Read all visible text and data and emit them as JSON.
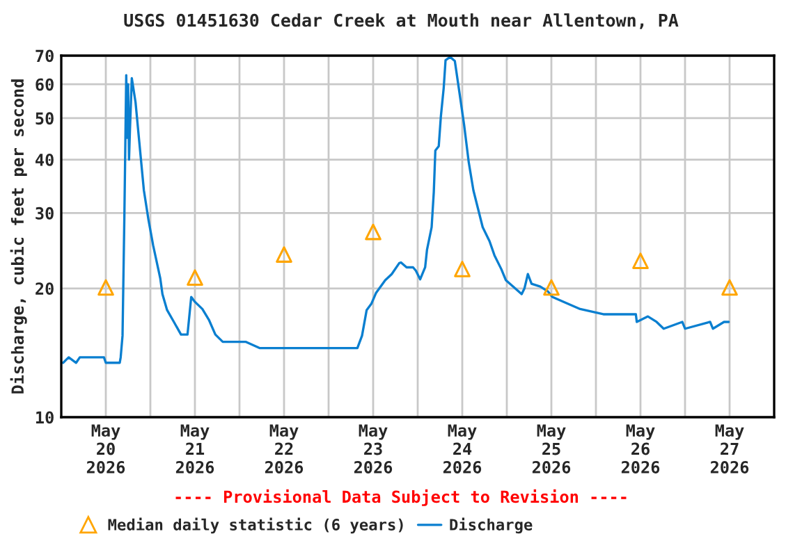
{
  "chart_data": {
    "type": "line",
    "title": "USGS 01451630 Cedar Creek at Mouth near Allentown, PA",
    "ylabel": "Discharge, cubic feet per second",
    "annotations": [
      "---- Provisional Data Subject to Revision ----"
    ],
    "log": "y",
    "grid": true,
    "legend": "bottom",
    "xlim": [
      "2026-05-20T00:00",
      "2026-05-28T00:00"
    ],
    "xticks": [
      {
        "value": "2026-05-20T12:00",
        "label": "May\n20\n2026"
      },
      {
        "value": "2026-05-21T12:00",
        "label": "May\n21\n2026"
      },
      {
        "value": "2026-05-22T12:00",
        "label": "May\n22\n2026"
      },
      {
        "value": "2026-05-23T12:00",
        "label": "May\n23\n2026"
      },
      {
        "value": "2026-05-24T12:00",
        "label": "May\n24\n2026"
      },
      {
        "value": "2026-05-25T12:00",
        "label": "May\n25\n2026"
      },
      {
        "value": "2026-05-26T12:00",
        "label": "May\n26\n2026"
      },
      {
        "value": "2026-05-27T12:00",
        "label": "May\n27\n2026"
      },
      {
        "value": "2026-05-21T00:00",
        "label": null
      },
      {
        "value": "2026-05-22T00:00",
        "label": null
      },
      {
        "value": "2026-05-23T00:00",
        "label": null
      },
      {
        "value": "2026-05-24T00:00",
        "label": null
      },
      {
        "value": "2026-05-25T00:00",
        "label": null
      },
      {
        "value": "2026-05-26T00:00",
        "label": null
      },
      {
        "value": "2026-05-27T00:00",
        "label": null
      }
    ],
    "ylim": [
      10,
      70
    ],
    "yticks": [
      10,
      20,
      30,
      40,
      50,
      60,
      70
    ],
    "series": [
      {
        "name": "Median daily statistic (6 years)",
        "type": "scatter",
        "marker": "triangle",
        "color": "#ffa500",
        "x": [
          "2026-05-20T12:00",
          "2026-05-21T12:00",
          "2026-05-22T12:00",
          "2026-05-23T12:00",
          "2026-05-24T12:00",
          "2026-05-25T12:00",
          "2026-05-26T12:00",
          "2026-05-27T12:00"
        ],
        "values": [
          20.1,
          21.2,
          24.0,
          27.1,
          22.2,
          20.1,
          23.2,
          20.1
        ]
      },
      {
        "name": "Discharge",
        "marker": "none",
        "color": "#0a7fd0",
        "x": [
          "2026-05-20T00:30",
          "2026-05-20T02:00",
          "2026-05-20T04:00",
          "2026-05-20T05:00",
          "2026-05-20T11:30",
          "2026-05-20T12:00",
          "2026-05-20T15:45",
          "2026-05-20T16:00",
          "2026-05-20T16:30",
          "2026-05-20T17:00",
          "2026-05-20T17:30",
          "2026-05-20T17:45",
          "2026-05-20T18:00",
          "2026-05-20T18:15",
          "2026-05-20T18:30",
          "2026-05-20T19:00",
          "2026-05-20T20:00",
          "2026-05-20T21:00",
          "2026-05-20T22:15",
          "2026-05-20T23:30",
          "2026-05-21T00:45",
          "2026-05-21T02:40",
          "2026-05-21T03:15",
          "2026-05-21T04:30",
          "2026-05-21T06:20",
          "2026-05-21T08:15",
          "2026-05-21T10:00",
          "2026-05-21T11:00",
          "2026-05-21T12:00",
          "2026-05-21T14:00",
          "2026-05-21T15:45",
          "2026-05-21T17:30",
          "2026-05-21T19:30",
          "2026-05-22T01:45",
          "2026-05-22T05:30",
          "2026-05-23T07:45",
          "2026-05-23T09:00",
          "2026-05-23T10:15",
          "2026-05-23T11:30",
          "2026-05-23T12:45",
          "2026-05-23T15:15",
          "2026-05-23T17:00",
          "2026-05-23T19:00",
          "2026-05-23T19:30",
          "2026-05-23T21:00",
          "2026-05-23T22:45",
          "2026-05-23T23:30",
          "2026-05-24T00:40",
          "2026-05-24T02:00",
          "2026-05-24T02:30",
          "2026-05-24T03:45",
          "2026-05-24T04:20",
          "2026-05-24T04:45",
          "2026-05-24T05:40",
          "2026-05-24T06:15",
          "2026-05-24T07:00",
          "2026-05-24T07:30",
          "2026-05-24T08:45",
          "2026-05-24T10:00",
          "2026-05-24T11:15",
          "2026-05-24T12:30",
          "2026-05-24T13:45",
          "2026-05-24T15:00",
          "2026-05-24T16:15",
          "2026-05-24T17:30",
          "2026-05-24T19:20",
          "2026-05-24T20:40",
          "2026-05-24T22:30",
          "2026-05-24T23:45",
          "2026-05-25T02:15",
          "2026-05-25T04:00",
          "2026-05-25T04:45",
          "2026-05-25T05:40",
          "2026-05-25T06:40",
          "2026-05-25T09:00",
          "2026-05-25T11:00",
          "2026-05-25T12:15",
          "2026-05-25T15:20",
          "2026-05-25T19:45",
          "2026-05-26T02:00",
          "2026-05-26T10:45",
          "2026-05-26T11:00",
          "2026-05-26T14:00",
          "2026-05-26T16:20",
          "2026-05-26T18:15",
          "2026-05-26T23:15",
          "2026-05-27T00:00",
          "2026-05-27T06:45",
          "2026-05-27T07:30",
          "2026-05-27T10:30",
          "2026-05-27T11:45"
        ],
        "values": [
          13.4,
          13.8,
          13.4,
          13.8,
          13.8,
          13.4,
          13.4,
          13.8,
          15.5,
          29.6,
          63.0,
          45,
          60,
          40,
          47,
          62,
          54.5,
          44.1,
          33.9,
          28.9,
          25.2,
          21.1,
          19.4,
          17.8,
          16.7,
          15.6,
          15.6,
          19.1,
          18.6,
          17.9,
          16.9,
          15.6,
          15.0,
          15.0,
          14.5,
          14.5,
          15.5,
          17.8,
          18.4,
          19.5,
          20.9,
          21.6,
          22.9,
          23.0,
          22.4,
          22.4,
          22.0,
          21.0,
          22.4,
          24.6,
          27.8,
          33.6,
          42.0,
          43,
          50.6,
          58.8,
          68.3,
          69.5,
          68,
          57.3,
          48.2,
          39.4,
          33.9,
          30.7,
          27.8,
          25.8,
          23.9,
          22.2,
          20.9,
          20.0,
          19.4,
          20.0,
          21.6,
          20.5,
          20.2,
          19.7,
          19.1,
          18.6,
          17.9,
          17.4,
          17.4,
          16.7,
          17.2,
          16.7,
          16.1,
          16.7,
          16.1,
          16.7,
          16.1,
          16.7,
          16.7
        ]
      }
    ]
  }
}
